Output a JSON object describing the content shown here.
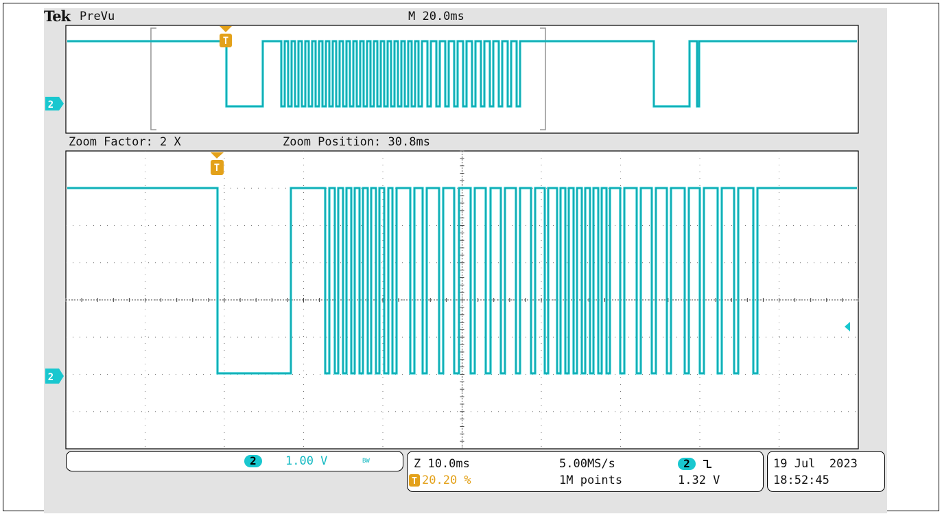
{
  "header": {
    "brand": "Tek",
    "mode": "PreVu",
    "timebase": "M 20.0ms"
  },
  "zoom": {
    "factor": "Zoom Factor: 2 X",
    "position": "Zoom Position: 30.8ms"
  },
  "channel": {
    "id": "2",
    "marker_label": "2",
    "scale": "1.00 V",
    "bw_flag": "BW",
    "color": "#19c7cf"
  },
  "trigger": {
    "marker": "T",
    "zoom_timebase": "Z 10.0ms",
    "sample_rate": "5.00MS/s",
    "position_percent": "20.20 %",
    "record_length": "1M points",
    "source": "2",
    "slope_icon": "falling-edge-icon",
    "level": "1.32 V",
    "color": "#e3a11a"
  },
  "datetime": {
    "date": "19 Jul  2023",
    "time": "18:52:45"
  },
  "colors": {
    "trace": "#19c7cf",
    "screen_background": "#e3e3e3",
    "grid": "#666666"
  }
}
